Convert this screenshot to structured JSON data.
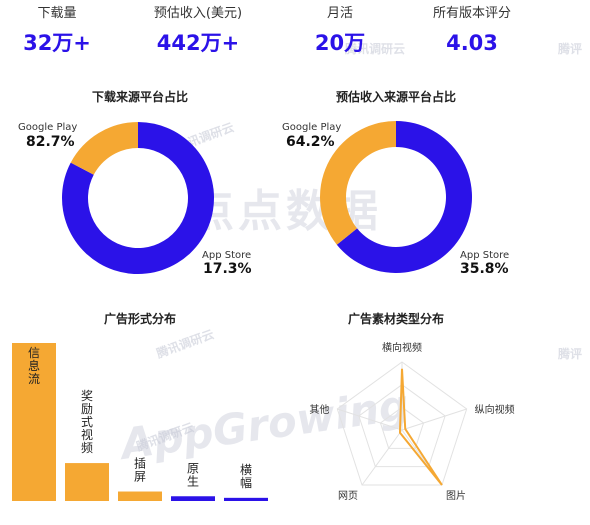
{
  "stats": [
    {
      "label": "下载量",
      "value": "32万+"
    },
    {
      "label": "预估收入(美元)",
      "value": "442万+"
    },
    {
      "label": "月活",
      "value": "20万"
    },
    {
      "label": "所有版本评分",
      "value": "4.03"
    }
  ],
  "colors": {
    "accent": "#2b12e8",
    "secondary": "#f5a833"
  },
  "watermarks": {
    "brand_cn": "点点数据",
    "brand_en": "AppGrowing",
    "tag": "腾讯调研云",
    "tag2": "腾讯调研云",
    "tag3": "腾讯调研云",
    "tag4": "腾讯调研云",
    "tag_edge": "腾评",
    "tag_edge2": "腾评"
  },
  "chart_data": [
    {
      "type": "pie",
      "title": "下载来源平台占比",
      "slices": [
        {
          "label": "Google Play",
          "value": 82.7,
          "display": "82.7%",
          "color": "#2b12e8"
        },
        {
          "label": "App Store",
          "value": 17.3,
          "display": "17.3%",
          "color": "#f5a833"
        }
      ]
    },
    {
      "type": "pie",
      "title": "预估收入来源平台占比",
      "slices": [
        {
          "label": "Google Play",
          "value": 64.2,
          "display": "64.2%",
          "color": "#2b12e8"
        },
        {
          "label": "App Store",
          "value": 35.8,
          "display": "35.8%",
          "color": "#f5a833"
        }
      ]
    },
    {
      "type": "bar",
      "title": "广告形式分布",
      "categories": [
        "信息流",
        "奖励式视频",
        "插屏",
        "原生",
        "横幅"
      ],
      "values": [
        100,
        24,
        6,
        3,
        2
      ],
      "colors": [
        "#f5a833",
        "#f5a833",
        "#f5a833",
        "#2b12e8",
        "#2b12e8"
      ]
    },
    {
      "type": "radar",
      "title": "广告素材类型分布",
      "axes": [
        "横向视频",
        "纵向视频",
        "图片",
        "网页",
        "其他"
      ],
      "values": [
        0.9,
        0.05,
        1.0,
        0.05,
        0.03
      ],
      "color": "#f5a833"
    }
  ]
}
